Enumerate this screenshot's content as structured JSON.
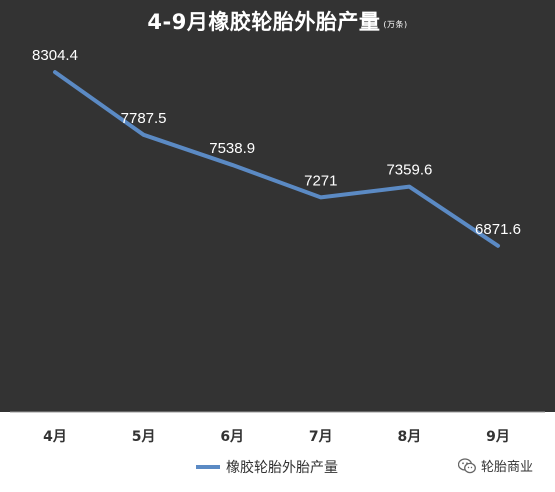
{
  "title": "4-9月橡胶轮胎外胎产量",
  "title_unit": "(万条)",
  "watermark": "轮胎商业",
  "colors": {
    "background": "#333333",
    "line": "#5b8ac4",
    "label": "#ffffff",
    "axis_text": "#333333"
  },
  "chart_data": {
    "type": "line",
    "categories": [
      "4月",
      "5月",
      "6月",
      "7月",
      "8月",
      "9月"
    ],
    "series": [
      {
        "name": "橡胶轮胎外胎产量",
        "values": [
          8304.4,
          7787.5,
          7538.9,
          7271,
          7359.6,
          6871.6
        ],
        "labels": [
          "8304.4",
          "7787.5",
          "7538.9",
          "7271",
          "7359.6",
          "6871.6"
        ]
      }
    ],
    "ylim": [
      5500,
      8900
    ],
    "grid": false,
    "legend": "bottom"
  }
}
